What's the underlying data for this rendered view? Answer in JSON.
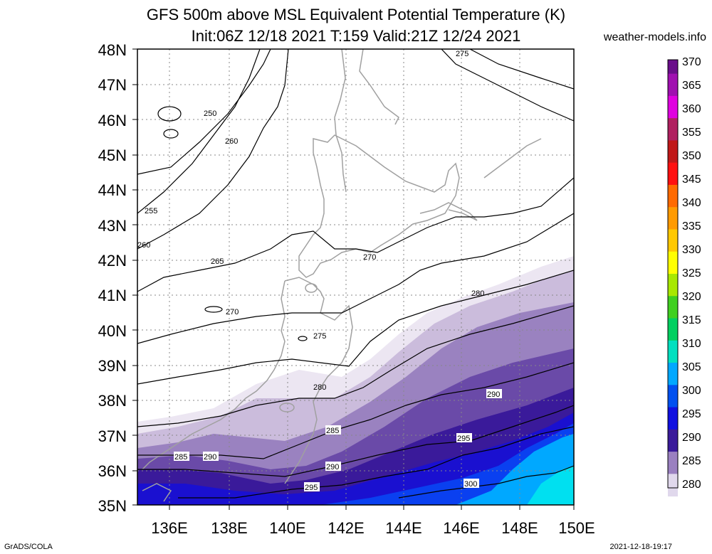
{
  "header": {
    "title_line1": "GFS 500m above MSL Equivalent Potential Temperature (K)",
    "title_line2": "Init:06Z 12/18 2021 T:159 Valid:21Z 12/24 2021",
    "site": "weather-models.info"
  },
  "footer": {
    "left": "GrADS/COLA",
    "right": "2021-12-18-19:17"
  },
  "axes": {
    "lat_labels": [
      "48N",
      "47N",
      "46N",
      "45N",
      "44N",
      "43N",
      "42N",
      "41N",
      "40N",
      "39N",
      "38N",
      "37N",
      "36N",
      "35N"
    ],
    "lon_labels": [
      "136E",
      "138E",
      "140E",
      "142E",
      "144E",
      "146E",
      "148E",
      "150E"
    ]
  },
  "colorbar": {
    "labels": [
      "370",
      "365",
      "360",
      "355",
      "350",
      "345",
      "340",
      "335",
      "330",
      "325",
      "320",
      "315",
      "310",
      "305",
      "300",
      "295",
      "290",
      "285",
      "280"
    ],
    "colors": [
      "#6a0d8a",
      "#a010b0",
      "#e000e0",
      "#b02060",
      "#c01818",
      "#ff1010",
      "#ff6a00",
      "#ff9a00",
      "#ffc800",
      "#ffff00",
      "#a8e800",
      "#40d020",
      "#00d060",
      "#00e0c0",
      "#00a8ff",
      "#0050f0",
      "#1010e0",
      "#3a1a9a",
      "#9a80c0",
      "#e0d8ec"
    ]
  },
  "contour_labels": [
    "250",
    "260",
    "255",
    "260",
    "265",
    "270",
    "270",
    "275",
    "275",
    "280",
    "280",
    "285",
    "285",
    "290",
    "290",
    "290",
    "295",
    "295",
    "300"
  ]
}
